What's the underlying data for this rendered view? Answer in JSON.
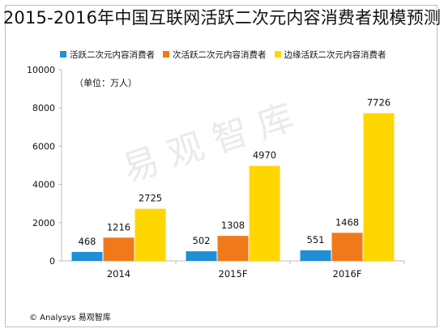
{
  "title": "2015-2016年中国互联网活跃二次元内容消费者规模预测",
  "unit_label": "（单位：万人）",
  "footer": "© Analysys 易观智库",
  "watermark": "易观智库",
  "chart_data": {
    "type": "bar",
    "title": "2015-2016年中国互联网活跃二次元内容消费者规模预测",
    "categories": [
      "2014",
      "2015F",
      "2016F"
    ],
    "series": [
      {
        "name": "活跃二次元内容消费者",
        "color": "#1f8fd8",
        "values": [
          468,
          502,
          551
        ]
      },
      {
        "name": "次活跃二次元内容消费者",
        "color": "#f07a1a",
        "values": [
          1216,
          1308,
          1468
        ]
      },
      {
        "name": "边缘活跃二次元内容消费者",
        "color": "#ffd700",
        "values": [
          2725,
          4970,
          7726
        ]
      }
    ],
    "ylim": [
      0,
      10000
    ],
    "yticks": [
      0,
      2000,
      4000,
      6000,
      8000,
      10000
    ],
    "legend_position": "top-left",
    "grid": false
  }
}
